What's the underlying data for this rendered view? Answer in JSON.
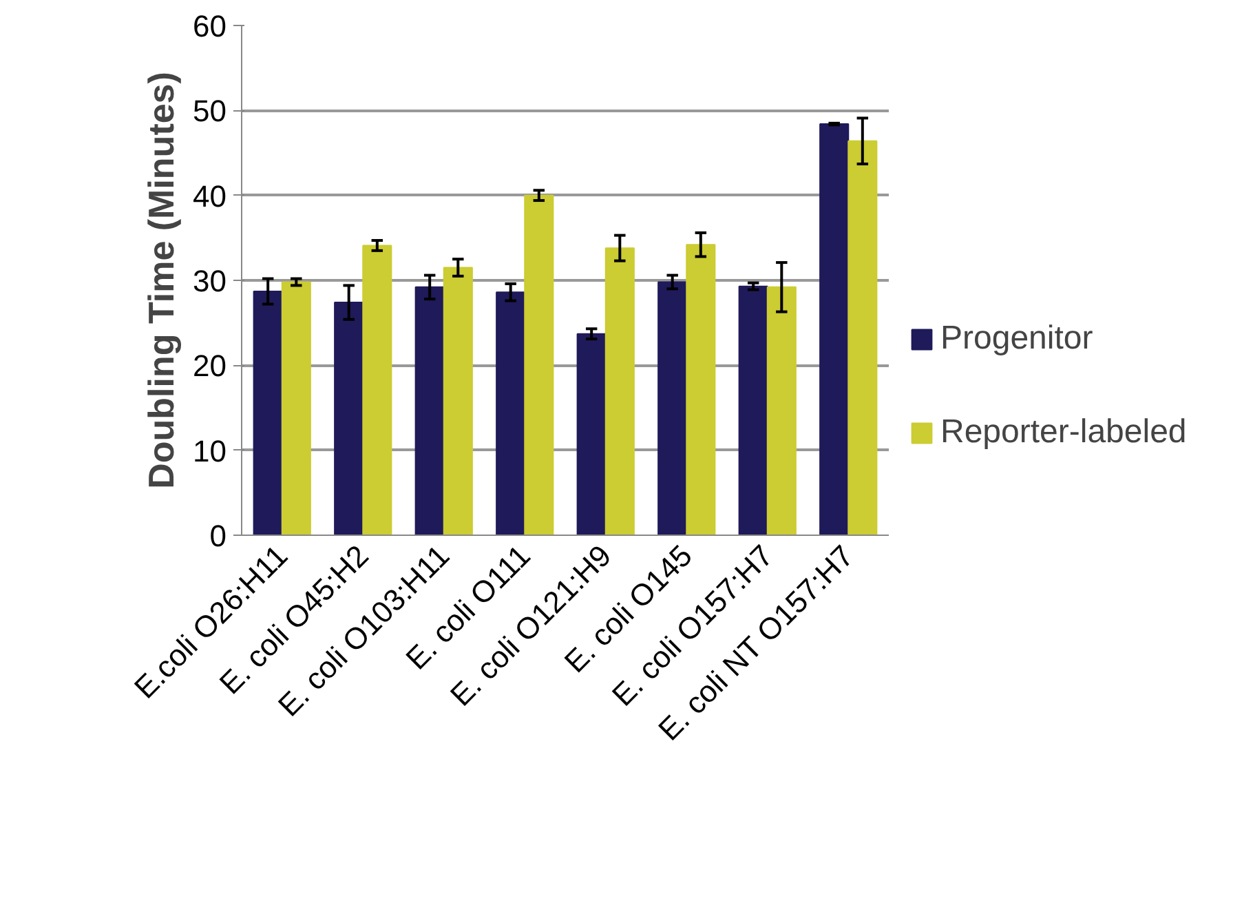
{
  "chart_data": {
    "type": "bar",
    "ylabel": "Doubling Time (Minutes)",
    "categories": [
      "E.coli O26:H11",
      "E. coli O45:H2",
      "E. coli O103:H11",
      "E. coli O111",
      "E. coli O121:H9",
      "E. coli O145",
      "E. coli O157:H7",
      "E. coli NT O157:H7"
    ],
    "series": [
      {
        "name": "Progenitor",
        "color": "#1f1a5a",
        "values": [
          28.7,
          27.4,
          29.2,
          28.6,
          23.7,
          29.8,
          29.3,
          48.4
        ],
        "errors": [
          1.5,
          2.0,
          1.4,
          1.0,
          0.6,
          0.8,
          0.4,
          0.1
        ]
      },
      {
        "name": "Reporter-labeled",
        "color": "#cccc33",
        "values": [
          29.8,
          34.1,
          31.5,
          40.0,
          33.8,
          34.2,
          29.2,
          46.4
        ],
        "errors": [
          0.4,
          0.6,
          1.0,
          0.6,
          1.5,
          1.4,
          2.9,
          2.7
        ]
      }
    ],
    "ylim": [
      0,
      60
    ],
    "yticks": [
      0,
      10,
      20,
      30,
      40,
      50,
      60
    ],
    "grid": "y",
    "legend": "right"
  }
}
